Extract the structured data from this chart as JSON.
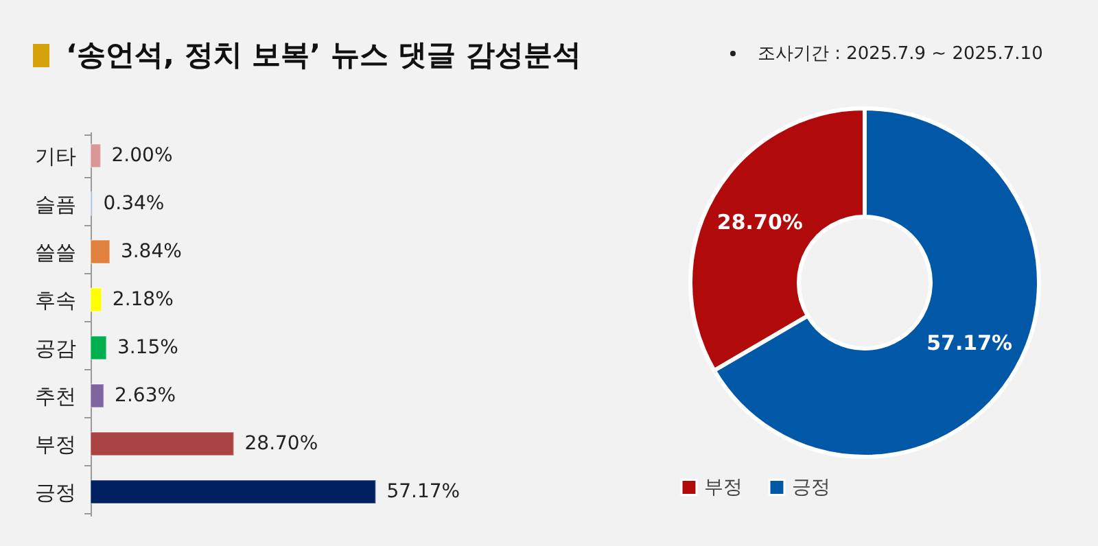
{
  "chart_data": [
    {
      "type": "bar",
      "orientation": "horizontal",
      "title": "‘송언석, 정치 보복’ 뉴스 댓글 감성분석",
      "annotations": [
        "조사기간 : 2025.7.9 ~ 2025.7.10"
      ],
      "categories": [
        "기타",
        "슬픔",
        "쓸쓸",
        "후속",
        "공감",
        "추천",
        "부정",
        "긍정"
      ],
      "values": [
        2.0,
        0.34,
        3.84,
        2.18,
        3.15,
        2.63,
        28.7,
        57.17
      ],
      "value_labels": [
        "2.00%",
        "0.34%",
        "3.84%",
        "2.18%",
        "3.15%",
        "2.63%",
        "28.70%",
        "57.17%"
      ],
      "colors": [
        "#d99694",
        "#a9bcd6",
        "#e0823e",
        "#ffff00",
        "#00b050",
        "#8064a2",
        "#a94442",
        "#002060"
      ],
      "tick_labels": "y",
      "grid": false
    },
    {
      "type": "donut",
      "categories": [
        "부정",
        "긍정"
      ],
      "values": [
        28.7,
        57.17
      ],
      "value_labels": [
        "28.70%",
        "57.17%"
      ],
      "colors": [
        "#b00a0a",
        "#0058a6"
      ],
      "legend": "bottom"
    }
  ]
}
